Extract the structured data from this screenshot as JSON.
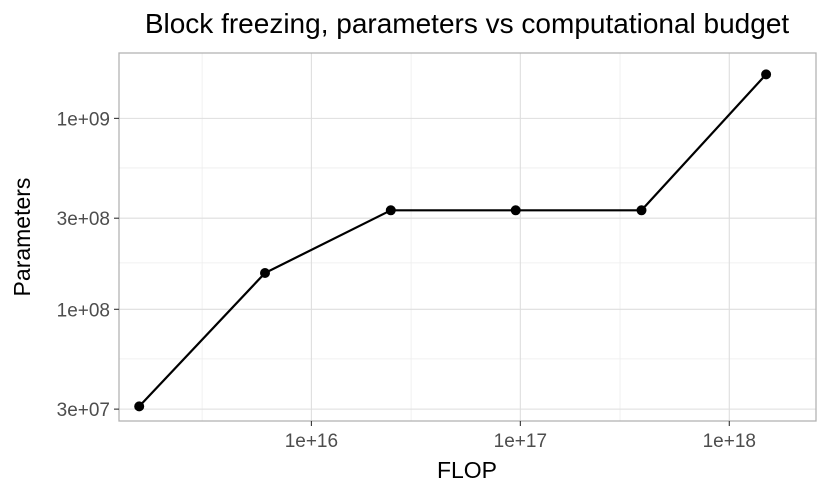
{
  "chart_data": {
    "type": "line",
    "title": "Block freezing, parameters vs computational budget",
    "xlabel": "FLOP",
    "ylabel": "Parameters",
    "x_scale": "log10",
    "y_scale": "log10",
    "xlim": [
      1200000000000000.0,
      2.6e+18
    ],
    "ylim": [
      26000000.0,
      2200000000.0
    ],
    "x_ticks": [
      {
        "value": 1e+16,
        "label": "1e+16"
      },
      {
        "value": 1e+17,
        "label": "1e+17"
      },
      {
        "value": 1e+18,
        "label": "1e+18"
      }
    ],
    "y_ticks": [
      {
        "value": 30000000.0,
        "label": "3e+07"
      },
      {
        "value": 100000000.0,
        "label": "1e+08"
      },
      {
        "value": 300000000.0,
        "label": "3e+08"
      },
      {
        "value": 1000000000.0,
        "label": "1e+09"
      }
    ],
    "x_minor_gridlines": [
      3000000000000000.0,
      3e+16,
      3e+17
    ],
    "y_minor_gridlines": [
      55000000.0,
      175000000.0,
      550000000.0
    ],
    "grid": true,
    "series": [
      {
        "x": [
          1500000000000000.0,
          6000000000000000.0,
          2.4e+16,
          9.5e+16,
          3.8e+17,
          1.5e+18
        ],
        "y": [
          31000000.0,
          155000000.0,
          330000000.0,
          330000000.0,
          330000000.0,
          1700000000.0
        ]
      }
    ]
  }
}
